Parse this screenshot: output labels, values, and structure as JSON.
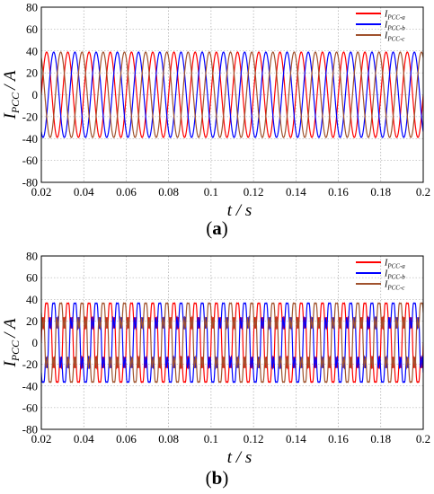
{
  "chart_data": [
    {
      "type": "line",
      "panel": "a",
      "caption_open": "(",
      "caption_letter": "a",
      "caption_close": ")",
      "xlabel": "t / s",
      "ylabel": "I_PCC / A",
      "ylabel_main": "I",
      "ylabel_sub": "PCC",
      "ylabel_unit": "/ A",
      "xlim": [
        0.02,
        0.2
      ],
      "ylim": [
        -80,
        80
      ],
      "xticks": [
        "0.02",
        "0.04",
        "0.06",
        "0.08",
        "0.1",
        "0.12",
        "0.14",
        "0.16",
        "0.18",
        "0.2"
      ],
      "yticks": [
        "80",
        "60",
        "40",
        "20",
        "0",
        "-20",
        "-40",
        "-60",
        "-80"
      ],
      "grid": true,
      "legend_position": "top-right",
      "waveform": {
        "frequency_hz": 100,
        "amplitude": 39,
        "harmonics": []
      },
      "series": [
        {
          "name": "I_PCC-a",
          "label_main": "I",
          "label_sub": "PCC-a",
          "color": "#ff0000",
          "phase_deg": 0
        },
        {
          "name": "I_PCC-b",
          "label_main": "I",
          "label_sub": "PCC-b",
          "color": "#0000ff",
          "phase_deg": -120
        },
        {
          "name": "I_PCC-c",
          "label_main": "I",
          "label_sub": "PCC-c",
          "color": "#a0522d",
          "phase_deg": 120
        }
      ]
    },
    {
      "type": "line",
      "panel": "b",
      "caption_open": "(",
      "caption_letter": "b",
      "caption_close": ")",
      "xlabel": "t / s",
      "ylabel": "I_PCC / A",
      "ylabel_main": "I",
      "ylabel_sub": "PCC",
      "ylabel_unit": "/ A",
      "xlim": [
        0.02,
        0.2
      ],
      "ylim": [
        -80,
        80
      ],
      "xticks": [
        "0.02",
        "0.04",
        "0.06",
        "0.08",
        "0.1",
        "0.12",
        "0.14",
        "0.16",
        "0.18",
        "0.2"
      ],
      "yticks": [
        "80",
        "60",
        "40",
        "20",
        "0",
        "-20",
        "-40",
        "-60",
        "-80"
      ],
      "grid": true,
      "legend_position": "top-right",
      "waveform": {
        "frequency_hz": 100,
        "amplitude": 34,
        "harmonics": [
          {
            "order": 5,
            "amplitude": 8
          },
          {
            "order": 7,
            "amplitude": 6
          }
        ]
      },
      "series": [
        {
          "name": "I_PCC-a",
          "label_main": "I",
          "label_sub": "PCC-a",
          "color": "#ff0000",
          "phase_deg": 0
        },
        {
          "name": "I_PCC-b",
          "label_main": "I",
          "label_sub": "PCC-b",
          "color": "#0000ff",
          "phase_deg": -120
        },
        {
          "name": "I_PCC-c",
          "label_main": "I",
          "label_sub": "PCC-c",
          "color": "#a0522d",
          "phase_deg": 120
        }
      ]
    }
  ]
}
